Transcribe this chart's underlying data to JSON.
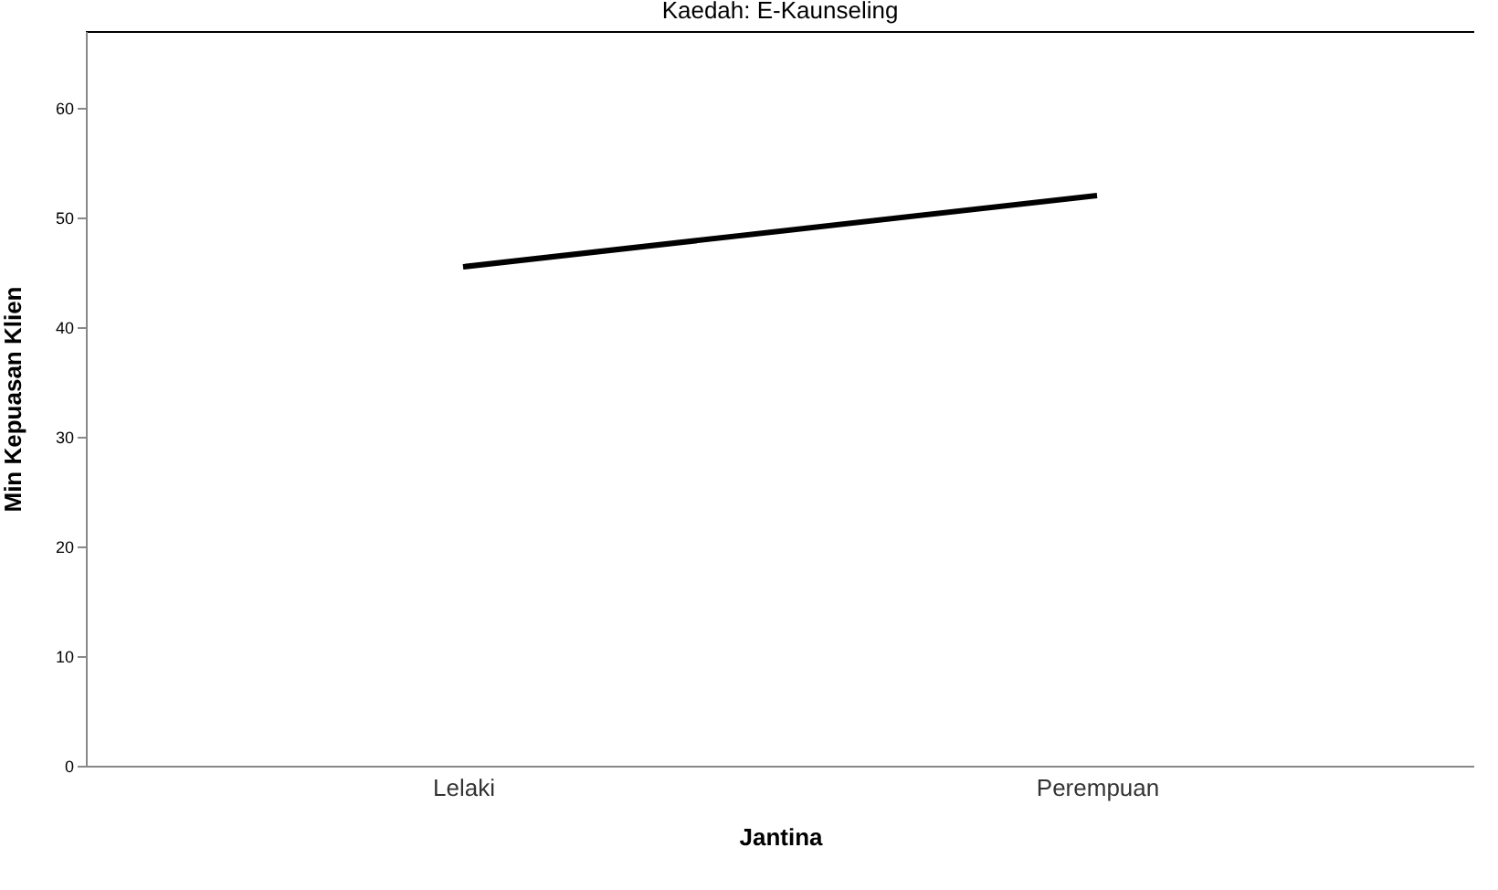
{
  "chart_data": {
    "type": "line",
    "title": "Kaedah: E-Kaunseling",
    "xlabel": "Jantina",
    "ylabel": "Min Kepuasan Klien",
    "categories": [
      "Lelaki",
      "Perempuan"
    ],
    "series": [
      {
        "color": "#000000",
        "values": [
          45.5,
          52.0
        ]
      }
    ],
    "ylim": [
      0,
      67
    ],
    "yticks": [
      0,
      10,
      20,
      30,
      40,
      50,
      60
    ],
    "grid": false,
    "legend": false,
    "marker": "none",
    "line_style": "solid"
  }
}
